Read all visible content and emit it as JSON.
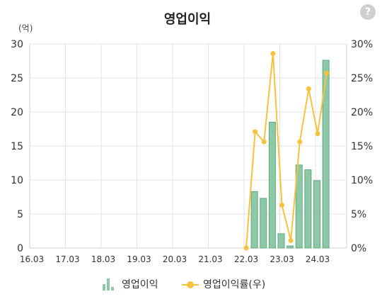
{
  "help_icon": "?",
  "chart_data": {
    "type": "bar+line",
    "title": "영업이익",
    "y_unit_label": "(억)",
    "categories": [
      "16.03",
      "17.03",
      "18.03",
      "19.03",
      "20.03",
      "21.03",
      "22.03",
      "23.03",
      "24.03"
    ],
    "x_axis_range": [
      "2016-03",
      "2024-12"
    ],
    "y_left": {
      "ticks": [
        "0",
        "5",
        "10",
        "15",
        "20",
        "25",
        "30"
      ],
      "range": [
        0,
        30
      ]
    },
    "y_right": {
      "ticks": [
        "0%",
        "5%",
        "10%",
        "15%",
        "20%",
        "25%",
        "30%"
      ],
      "range": [
        0,
        30
      ]
    },
    "grid": true,
    "legend_position": "bottom",
    "legend": {
      "bar_label": "영업이익",
      "line_label": "영업이익률(우)"
    },
    "colors": {
      "bar_fill": "#8ec9a7",
      "bar_stroke": "#5fa980",
      "line": "#f7c23f",
      "grid": "#e3e3e3",
      "axis": "#d0d0d0"
    },
    "series": [
      {
        "name": "영업이익",
        "type": "bar",
        "axis": "left",
        "x": [
          "2022-06",
          "2022-09",
          "2022-12",
          "2023-03",
          "2023-06",
          "2023-09",
          "2023-12",
          "2024-03",
          "2024-06",
          "2024-09"
        ],
        "values": [
          8.3,
          7.3,
          18.5,
          2.1,
          0.3,
          12.2,
          11.5,
          9.9,
          27.6,
          null
        ]
      },
      {
        "name": "영업이익률(우)",
        "type": "line",
        "axis": "right",
        "x": [
          "2022-03",
          "2022-06",
          "2022-09",
          "2022-12",
          "2023-03",
          "2023-06",
          "2023-09",
          "2023-12",
          "2024-03",
          "2024-06"
        ],
        "values": [
          0,
          17.1,
          15.6,
          28.6,
          6.3,
          1.1,
          15.6,
          23.4,
          16.8,
          25.7
        ]
      }
    ]
  }
}
